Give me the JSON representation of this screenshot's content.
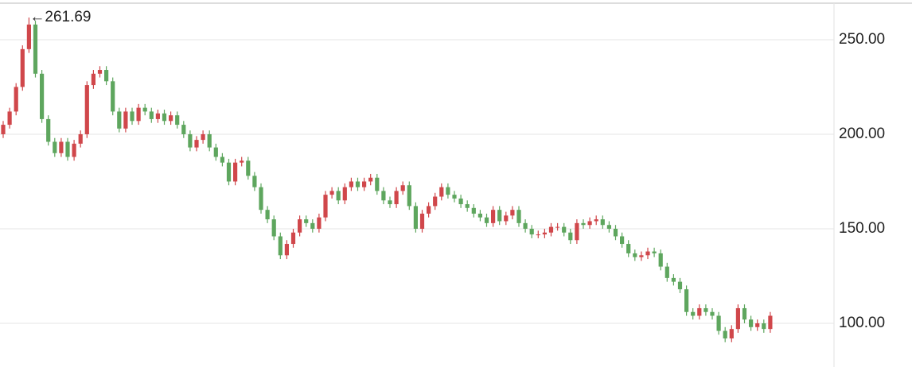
{
  "chart_data": {
    "type": "candlestick",
    "up_color": "#d0474b",
    "down_color": "#5ea65e",
    "grid": true,
    "ylim": [
      76.9,
      269.3
    ],
    "yticks": [
      {
        "value": 100,
        "label": "100.00"
      },
      {
        "value": 150,
        "label": "150.00"
      },
      {
        "value": 200,
        "label": "200.00"
      },
      {
        "value": 250,
        "label": "250.00"
      }
    ],
    "max_annotation": {
      "value": 261.69,
      "label": "←261.69"
    },
    "open": [
      200,
      205,
      212,
      225,
      245,
      258,
      232,
      208,
      196,
      190,
      196,
      188,
      195,
      200,
      226,
      232,
      234,
      228,
      212,
      203,
      212,
      207,
      214,
      212,
      208,
      211,
      207,
      210,
      205,
      200,
      193,
      197,
      200,
      193,
      188,
      185,
      175,
      185,
      186,
      178,
      172,
      160,
      155,
      146,
      136,
      142,
      148,
      155,
      153,
      150,
      156,
      168,
      170,
      165,
      172,
      175,
      172,
      175,
      177,
      170,
      165,
      163,
      170,
      173,
      162,
      150,
      158,
      162,
      167,
      172,
      168,
      166,
      163,
      161,
      158,
      156,
      153,
      160,
      154,
      157,
      160,
      153,
      150,
      147,
      147,
      148,
      151,
      151,
      148,
      144,
      153,
      152,
      154,
      155,
      152,
      150,
      146,
      142,
      137,
      135,
      136,
      138,
      137,
      130,
      124,
      122,
      118,
      106,
      104,
      108,
      106,
      104,
      96,
      92,
      97,
      108,
      102,
      98,
      100,
      97
    ],
    "high": [
      207,
      214,
      227,
      247,
      261.69,
      260,
      234,
      210,
      198,
      198,
      198,
      197,
      202,
      228,
      234,
      236,
      236,
      230,
      214,
      214,
      214,
      216,
      216,
      214,
      213,
      213,
      212,
      212,
      207,
      202,
      199,
      202,
      202,
      195,
      190,
      187,
      187,
      188,
      188,
      180,
      174,
      162,
      157,
      148,
      144,
      150,
      157,
      157,
      155,
      158,
      170,
      172,
      172,
      174,
      177,
      177,
      177,
      179,
      179,
      172,
      167,
      172,
      175,
      175,
      164,
      160,
      164,
      169,
      174,
      174,
      170,
      168,
      165,
      163,
      160,
      158,
      162,
      162,
      159,
      162,
      162,
      155,
      152,
      149,
      150,
      153,
      153,
      153,
      150,
      155,
      155,
      156,
      157,
      157,
      154,
      152,
      148,
      144,
      139,
      138,
      140,
      140,
      139,
      132,
      126,
      124,
      120,
      108,
      110,
      110,
      108,
      106,
      98,
      99,
      110,
      110,
      104,
      102,
      102,
      106
    ],
    "low": [
      198,
      203,
      210,
      223,
      243,
      230,
      206,
      194,
      188,
      188,
      186,
      186,
      193,
      198,
      224,
      230,
      226,
      210,
      201,
      201,
      205,
      205,
      210,
      206,
      206,
      205,
      205,
      203,
      198,
      191,
      191,
      195,
      191,
      186,
      183,
      173,
      173,
      183,
      176,
      170,
      158,
      153,
      144,
      134,
      134,
      140,
      146,
      151,
      148,
      148,
      154,
      166,
      163,
      163,
      170,
      170,
      170,
      173,
      168,
      163,
      161,
      161,
      168,
      160,
      148,
      148,
      156,
      160,
      165,
      166,
      164,
      161,
      159,
      156,
      154,
      151,
      151,
      152,
      152,
      155,
      151,
      148,
      145,
      145,
      145,
      146,
      149,
      146,
      142,
      142,
      150,
      150,
      152,
      150,
      148,
      144,
      140,
      135,
      133,
      133,
      134,
      135,
      128,
      122,
      120,
      116,
      104,
      102,
      102,
      104,
      102,
      94,
      90,
      90,
      95,
      100,
      96,
      96,
      95,
      95
    ],
    "close": [
      205,
      212,
      225,
      245,
      258,
      232,
      208,
      196,
      190,
      196,
      188,
      195,
      200,
      226,
      232,
      234,
      228,
      212,
      203,
      212,
      207,
      214,
      212,
      208,
      211,
      207,
      210,
      205,
      200,
      193,
      197,
      200,
      193,
      188,
      185,
      175,
      185,
      186,
      178,
      172,
      160,
      155,
      146,
      136,
      142,
      148,
      155,
      153,
      150,
      156,
      168,
      170,
      165,
      172,
      175,
      172,
      175,
      177,
      170,
      165,
      163,
      170,
      173,
      162,
      150,
      158,
      162,
      167,
      172,
      168,
      166,
      163,
      161,
      158,
      156,
      153,
      160,
      154,
      157,
      160,
      153,
      150,
      147,
      147,
      148,
      151,
      151,
      148,
      144,
      153,
      152,
      154,
      155,
      152,
      150,
      146,
      142,
      137,
      135,
      136,
      138,
      137,
      130,
      124,
      122,
      118,
      106,
      104,
      108,
      106,
      104,
      96,
      92,
      97,
      108,
      102,
      98,
      100,
      97,
      104
    ]
  }
}
